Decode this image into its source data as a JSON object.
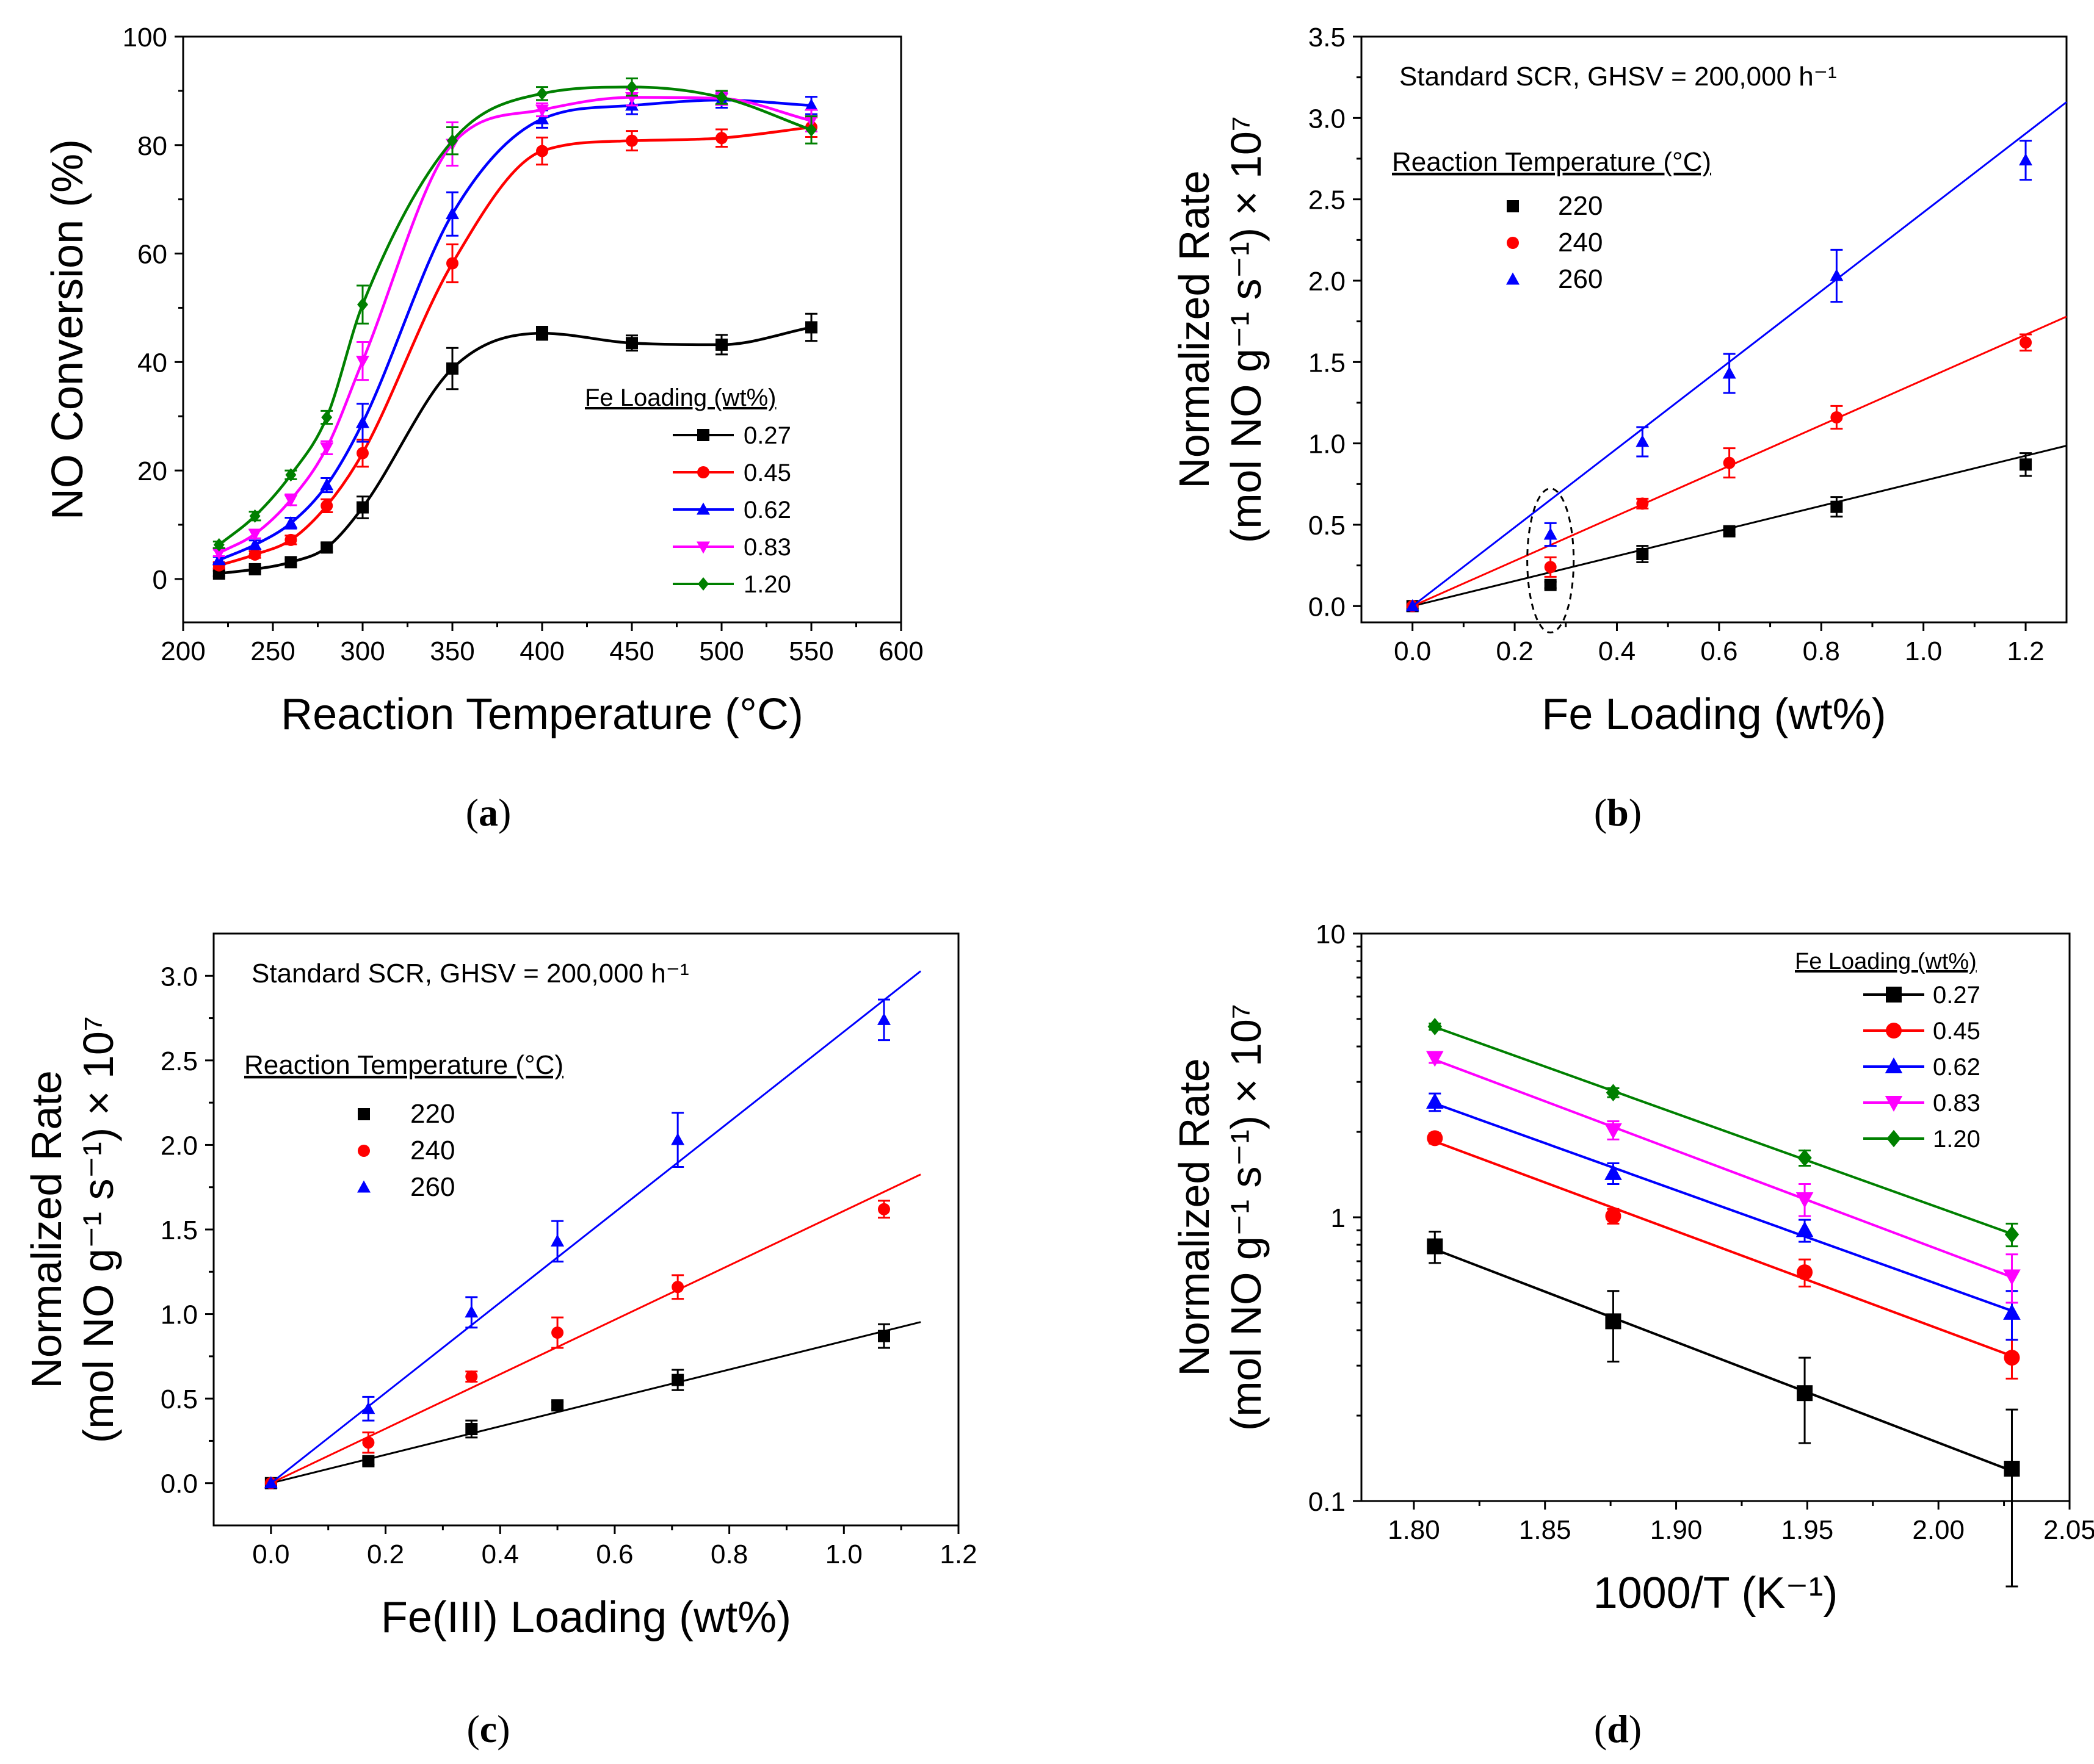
{
  "chart_data": [
    {
      "panel": "a",
      "type": "line",
      "xlabel": "Reaction Temperature (°C)",
      "ylabel": "NO Conversion (%)",
      "xlim": [
        200,
        600
      ],
      "ylim": [
        -8,
        100
      ],
      "xticks": [
        200,
        250,
        300,
        350,
        400,
        450,
        500,
        550,
        600
      ],
      "yticks": [
        0,
        20,
        40,
        60,
        80,
        100
      ],
      "legend_title": "Fe Loading (wt%)",
      "legend_position": "center-right",
      "x": [
        220,
        240,
        260,
        280,
        300,
        350,
        400,
        450,
        500,
        550
      ],
      "series": [
        {
          "name": "0.27",
          "color": "#000000",
          "marker": "square",
          "values": [
            1,
            1.8,
            3.1,
            5.8,
            13.2,
            38.8,
            45.3,
            43.5,
            43.2,
            46.4
          ],
          "errors": [
            0.5,
            0.5,
            0.5,
            0.8,
            2.0,
            3.8,
            1.2,
            1.4,
            1.8,
            2.5
          ]
        },
        {
          "name": "0.45",
          "color": "#ff0000",
          "marker": "circle",
          "values": [
            2.5,
            4.5,
            7.2,
            13.5,
            23.2,
            58.2,
            78.9,
            80.8,
            81.3,
            83.3
          ],
          "errors": [
            0.6,
            0.6,
            0.8,
            1.2,
            2.5,
            3.5,
            2.5,
            1.8,
            1.6,
            1.8
          ]
        },
        {
          "name": "0.62",
          "color": "#0000ff",
          "marker": "triangle-up",
          "values": [
            3.5,
            6.3,
            10.3,
            17.3,
            28.8,
            67.3,
            84.8,
            87.3,
            88.3,
            87.3
          ],
          "errors": [
            0.6,
            0.8,
            1.0,
            1.3,
            3.5,
            4.0,
            1.6,
            1.6,
            1.4,
            1.6
          ]
        },
        {
          "name": "0.83",
          "color": "#ff00ff",
          "marker": "triangle-down",
          "values": [
            4.8,
            8.3,
            14.6,
            24.2,
            40.2,
            80.2,
            86.5,
            88.8,
            88.6,
            84.5
          ],
          "errors": [
            0.6,
            0.8,
            1.0,
            1.2,
            3.5,
            4.0,
            1.2,
            1.5,
            1.2,
            2.0
          ]
        },
        {
          "name": "1.20",
          "color": "#008000",
          "marker": "diamond",
          "values": [
            6.3,
            11.6,
            19.2,
            29.8,
            50.6,
            80.8,
            89.5,
            90.7,
            88.8,
            82.8
          ],
          "errors": [
            0.6,
            0.8,
            0.8,
            1.2,
            3.5,
            2.5,
            1.2,
            1.6,
            1.2,
            2.5
          ]
        }
      ]
    },
    {
      "panel": "b",
      "type": "scatter",
      "xlabel": "Fe Loading (wt%)",
      "ylabel_line1": "Normalized Rate",
      "ylabel_line2": "(mol NO g⁻¹ s⁻¹) × 10⁷",
      "annotation": "Standard SCR, GHSV = 200,000 h⁻¹",
      "xlim": [
        -0.1,
        1.28
      ],
      "ylim": [
        -0.1,
        3.5
      ],
      "xticks": [
        0.0,
        0.2,
        0.4,
        0.6,
        0.8,
        1.0,
        1.2
      ],
      "yticks": [
        0.0,
        0.5,
        1.0,
        1.5,
        2.0,
        2.5,
        3.0,
        3.5
      ],
      "legend_title": "Reaction Temperature (°C)",
      "legend_position": "top-left",
      "highlight_ellipse_x": 0.27,
      "x": [
        0,
        0.27,
        0.45,
        0.62,
        0.83,
        1.2
      ],
      "series": [
        {
          "name": "220",
          "color": "#000000",
          "marker": "square",
          "values": [
            0,
            0.13,
            0.32,
            0.46,
            0.61,
            0.87
          ],
          "errors": [
            0,
            0.02,
            0.05,
            0.02,
            0.06,
            0.07
          ],
          "fit_slope": 0.77
        },
        {
          "name": "240",
          "color": "#ff0000",
          "marker": "circle",
          "values": [
            0,
            0.24,
            0.63,
            0.88,
            1.16,
            1.62
          ],
          "errors": [
            0,
            0.06,
            0.03,
            0.09,
            0.07,
            0.05
          ],
          "fit_slope": 1.39
        },
        {
          "name": "260",
          "color": "#0000ff",
          "marker": "triangle-up",
          "values": [
            0,
            0.44,
            1.01,
            1.43,
            2.03,
            2.74
          ],
          "errors": [
            0,
            0.07,
            0.09,
            0.12,
            0.16,
            0.12
          ],
          "fit_slope": 2.42
        }
      ]
    },
    {
      "panel": "c",
      "type": "scatter",
      "xlabel": "Fe(III) Loading (wt%)",
      "ylabel_line1": "Normalized Rate",
      "ylabel_line2": "(mol NO g⁻¹ s⁻¹) × 10⁷",
      "annotation": "Standard SCR, GHSV = 200,000 h⁻¹",
      "xlim": [
        -0.1,
        1.2
      ],
      "ylim": [
        -0.25,
        3.25
      ],
      "xticks": [
        0.0,
        0.2,
        0.4,
        0.6,
        0.8,
        1.0,
        1.2
      ],
      "yticks": [
        0.0,
        0.5,
        1.0,
        1.5,
        2.0,
        2.5,
        3.0
      ],
      "legend_title": "Reaction Temperature (°C)",
      "legend_position": "top-left",
      "x": [
        0,
        0.17,
        0.35,
        0.5,
        0.71,
        1.07
      ],
      "series": [
        {
          "name": "220",
          "color": "#000000",
          "marker": "square",
          "values": [
            0,
            0.13,
            0.32,
            0.46,
            0.61,
            0.87
          ],
          "errors": [
            0,
            0.02,
            0.05,
            0.02,
            0.06,
            0.07
          ],
          "fit_slope": 0.84
        },
        {
          "name": "240",
          "color": "#ff0000",
          "marker": "circle",
          "values": [
            0,
            0.24,
            0.63,
            0.89,
            1.16,
            1.62
          ],
          "errors": [
            0,
            0.06,
            0.03,
            0.09,
            0.07,
            0.05
          ],
          "fit_slope": 1.61
        },
        {
          "name": "260",
          "color": "#0000ff",
          "marker": "triangle-up",
          "values": [
            0,
            0.44,
            1.01,
            1.43,
            2.03,
            2.74
          ],
          "errors": [
            0,
            0.07,
            0.09,
            0.12,
            0.16,
            0.12
          ],
          "fit_slope": 2.67
        }
      ]
    },
    {
      "panel": "d",
      "type": "line",
      "yscale": "log",
      "xlabel": "1000/T (K⁻¹)",
      "ylabel_line1": "Normalized Rate",
      "ylabel_line2": "(mol NO g⁻¹ s⁻¹) × 10⁷",
      "xlim": [
        1.78,
        2.05
      ],
      "ylim": [
        0.1,
        10
      ],
      "xticks": [
        1.8,
        1.85,
        1.9,
        1.95,
        2.0,
        2.05
      ],
      "yticks": [
        0.1,
        1,
        10
      ],
      "legend_title": "Fe Loading (wt%)",
      "legend_position": "top-right",
      "x": [
        1.808,
        1.876,
        1.949,
        2.028
      ],
      "series": [
        {
          "name": "0.27",
          "color": "#000000",
          "marker": "square",
          "values": [
            0.79,
            0.43,
            0.24,
            0.13
          ],
          "errors": [
            0.1,
            0.12,
            0.08,
            0.08
          ]
        },
        {
          "name": "0.45",
          "color": "#ff0000",
          "marker": "circle",
          "values": [
            1.9,
            1.01,
            0.64,
            0.32
          ],
          "errors": [
            0.08,
            0.06,
            0.07,
            0.05
          ]
        },
        {
          "name": "0.62",
          "color": "#0000ff",
          "marker": "triangle-up",
          "values": [
            2.55,
            1.43,
            0.9,
            0.46
          ],
          "errors": [
            0.18,
            0.12,
            0.08,
            0.09
          ]
        },
        {
          "name": "0.83",
          "color": "#ff00ff",
          "marker": "triangle-down",
          "values": [
            3.65,
            2.03,
            1.16,
            0.62
          ],
          "errors": [
            0.15,
            0.15,
            0.15,
            0.12
          ]
        },
        {
          "name": "1.20",
          "color": "#008000",
          "marker": "diamond",
          "values": [
            4.7,
            2.75,
            1.62,
            0.87
          ],
          "errors": [
            0.12,
            0.1,
            0.1,
            0.08
          ]
        }
      ]
    }
  ],
  "panel_labels": [
    "(a)",
    "(b)",
    "(c)",
    "(d)"
  ]
}
